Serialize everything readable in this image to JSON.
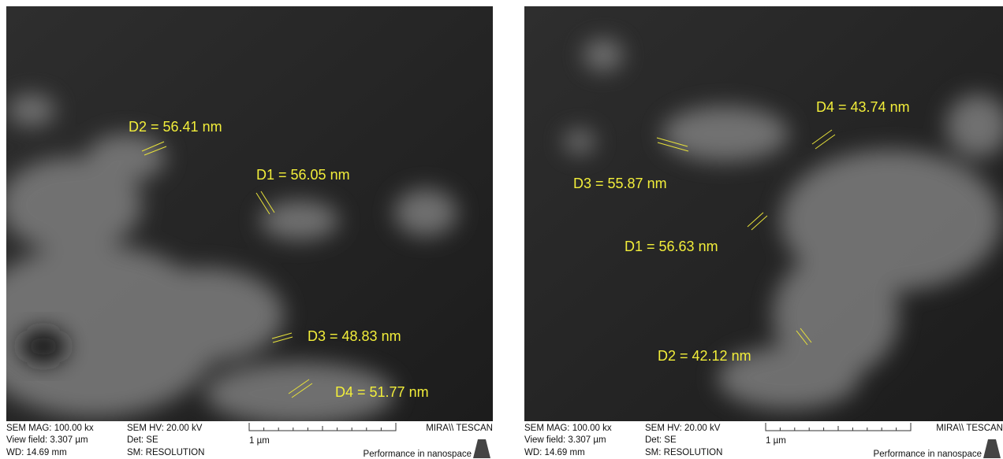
{
  "panels": [
    {
      "measurements": [
        {
          "label": "D2 = 56.41 nm"
        },
        {
          "label": "D1 = 56.05 nm"
        },
        {
          "label": "D3 = 48.83 nm"
        },
        {
          "label": "D4 = 51.77 nm"
        }
      ],
      "info": {
        "mag": "SEM MAG: 100.00 kx",
        "view_field": "View field: 3.307 µm",
        "wd": "WD: 14.69 mm",
        "hv": "SEM HV: 20.00 kV",
        "det": "Det: SE",
        "sm": "SM: RESOLUTION",
        "scale": "1 µm",
        "brand": "MIRA\\\\ TESCAN",
        "slogan": "Performance in nanospace"
      }
    },
    {
      "measurements": [
        {
          "label": "D4 = 43.74 nm"
        },
        {
          "label": "D3 = 55.87 nm"
        },
        {
          "label": "D1 = 56.63 nm"
        },
        {
          "label": "D2 = 42.12 nm"
        }
      ],
      "info": {
        "mag": "SEM MAG: 100.00 kx",
        "view_field": "View field: 3.307 µm",
        "wd": "WD: 14.69 mm",
        "hv": "SEM HV: 20.00 kV",
        "det": "Det: SE",
        "sm": "SM: RESOLUTION",
        "scale": "1 µm",
        "brand": "MIRA\\\\ TESCAN",
        "slogan": "Performance in nanospace"
      }
    }
  ]
}
